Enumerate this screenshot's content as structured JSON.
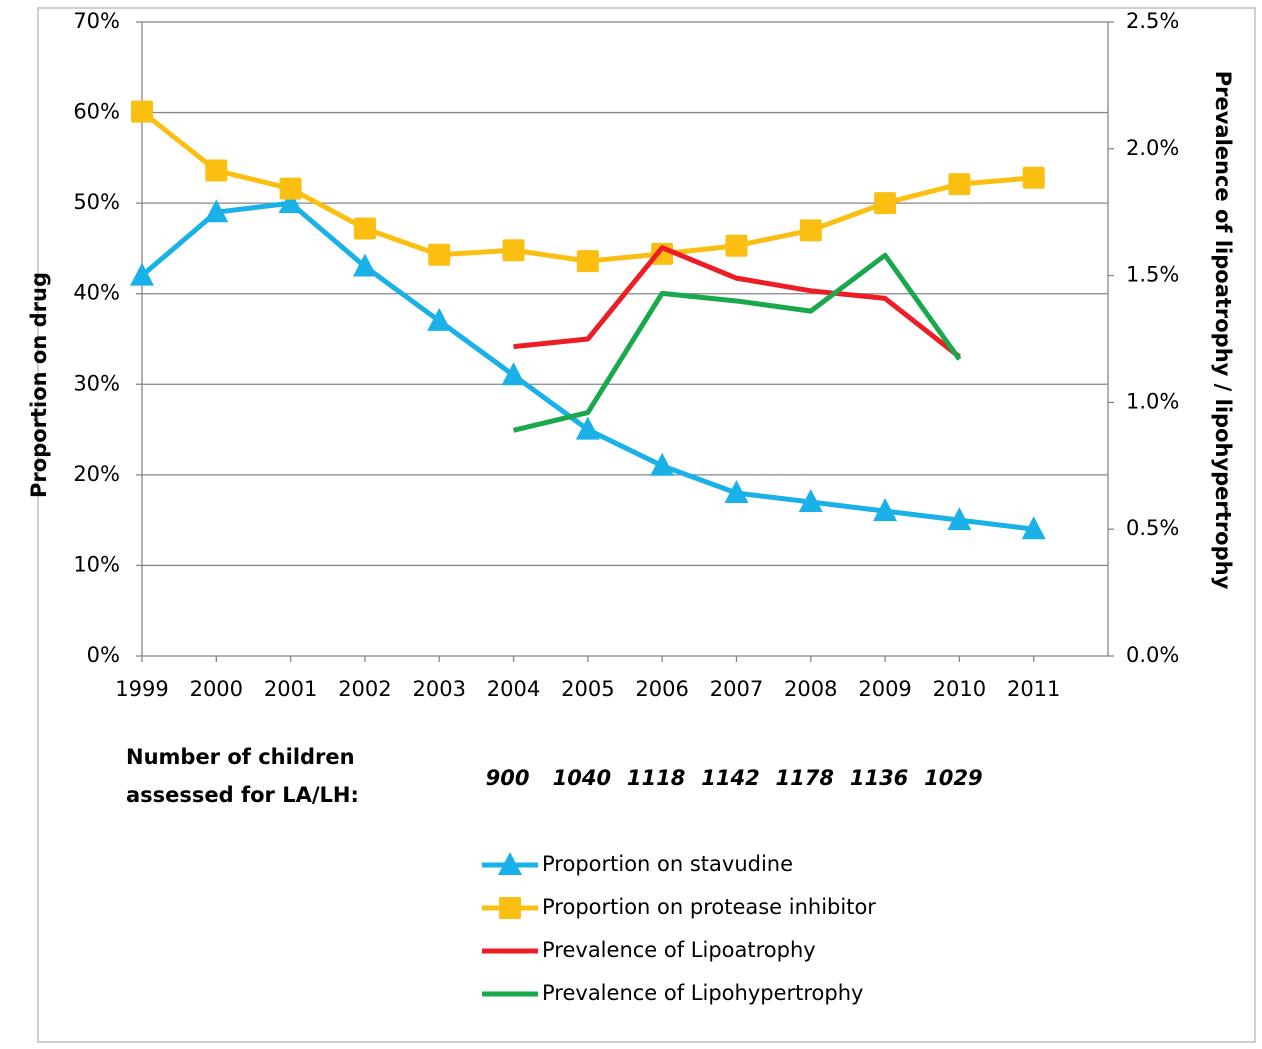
{
  "chart_data": {
    "type": "line",
    "categories": [
      "1999",
      "2000",
      "2001",
      "2002",
      "2003",
      "2004",
      "2005",
      "2006",
      "2007",
      "2008",
      "2009",
      "2010",
      "2011"
    ],
    "y_label": "Proportion on drug",
    "y2_label": "Prevalence of lipoatrophy / lipohypertrophy",
    "ylim": [
      0,
      70
    ],
    "yticks": [
      {
        "value": 0,
        "label": "0%"
      },
      {
        "value": 10,
        "label": "10%"
      },
      {
        "value": 20,
        "label": "20%"
      },
      {
        "value": 30,
        "label": "30%"
      },
      {
        "value": 40,
        "label": "40%"
      },
      {
        "value": 50,
        "label": "50%"
      },
      {
        "value": 60,
        "label": "60%"
      },
      {
        "value": 70,
        "label": "70%"
      }
    ],
    "y2lim": [
      0,
      2.5
    ],
    "y2ticks": [
      {
        "value": 0,
        "label": "0.0%"
      },
      {
        "value": 0.5,
        "label": "0.5%"
      },
      {
        "value": 1,
        "label": "1.0%"
      },
      {
        "value": 1.5,
        "label": "1.5%"
      },
      {
        "value": 2,
        "label": "2.0%"
      },
      {
        "value": 2.5,
        "label": "2.5%"
      }
    ],
    "grid": true,
    "series": [
      {
        "name": "Proportion on stavudine",
        "color": "#1ab0e8",
        "marker": "triangle",
        "values": [
          42,
          49,
          50,
          43,
          37,
          31,
          25,
          21,
          18,
          17,
          16,
          15,
          14
        ]
      },
      {
        "name": "Proportion on protease inhibitor",
        "color": "#fbbf12",
        "marker": "square",
        "values": [
          60.1,
          53.6,
          51.6,
          47.2,
          44.3,
          44.8,
          43.6,
          44.4,
          45.3,
          47.0,
          50.0,
          52.1,
          52.8
        ]
      },
      {
        "name": "Prevalence of Lipoatrophy",
        "color": "#ee1c25",
        "axis": "y2",
        "values": [
          null,
          null,
          null,
          null,
          null,
          1.22,
          1.25,
          1.61,
          1.49,
          1.44,
          1.41,
          1.18,
          null
        ]
      },
      {
        "name": "Prevalence of Lipohypertrophy",
        "color": "#19a84c",
        "axis": "y2",
        "values": [
          null,
          null,
          null,
          null,
          null,
          0.89,
          0.96,
          1.43,
          1.4,
          1.36,
          1.58,
          1.17,
          null
        ]
      }
    ],
    "count_label": [
      "Number of children",
      "assessed for LA/LH:"
    ],
    "counts": [
      null,
      null,
      null,
      null,
      null,
      900,
      1040,
      1118,
      1142,
      1178,
      1136,
      1029,
      null
    ]
  }
}
